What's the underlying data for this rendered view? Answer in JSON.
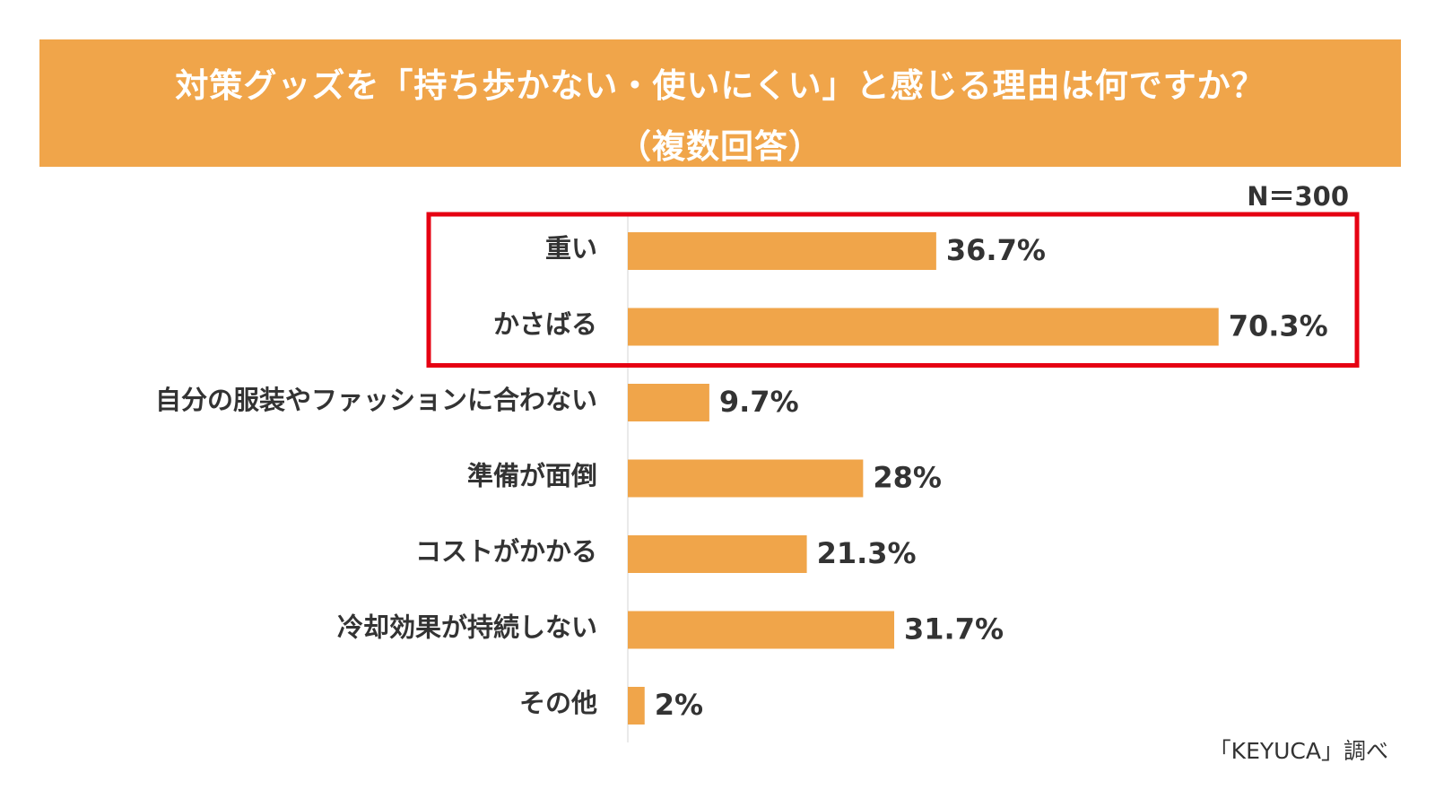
{
  "title": {
    "line1": "対策グッズを「持ち歩かない・使いにくい」と感じる理由は何ですか？",
    "line2": "（複数回答）"
  },
  "sample_size": "N＝300",
  "source": "「KEYUCA」調べ",
  "colors": {
    "banner": "#F0A54A",
    "bar": "#F0A54A",
    "highlight_box": "#E60012",
    "text": "#333333"
  },
  "chart_data": {
    "type": "bar",
    "orientation": "horizontal",
    "categories": [
      "重い",
      "かさばる",
      "自分の服装やファッションに合わない",
      "準備が面倒",
      "コストがかかる",
      "冷却効果が持続しない",
      "その他"
    ],
    "values": [
      36.7,
      70.3,
      9.7,
      28,
      21.3,
      31.7,
      2
    ],
    "value_labels": [
      "36.7%",
      "70.3%",
      "9.7%",
      "28%",
      "21.3%",
      "31.7%",
      "2%"
    ],
    "unit": "%",
    "xlim": [
      0,
      100
    ],
    "grid": false,
    "legend": "none",
    "highlighted_categories": [
      "重い",
      "かさばる"
    ]
  }
}
